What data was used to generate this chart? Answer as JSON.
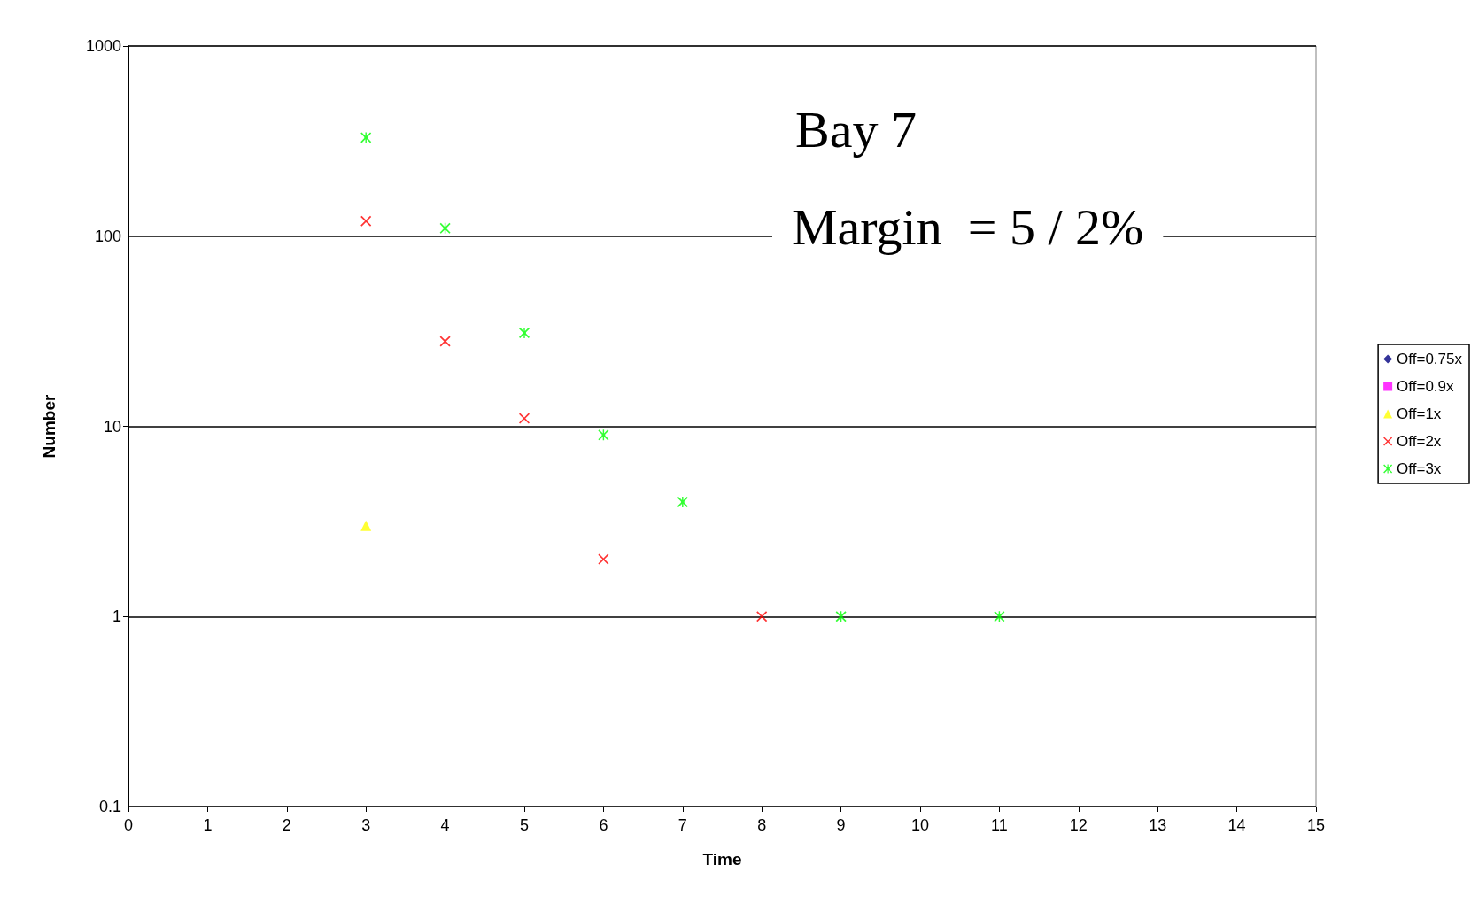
{
  "chart_data": {
    "type": "scatter",
    "title": "Bay 7",
    "annotations": [
      "Margin  = 5 / 2%"
    ],
    "xlabel": "Time",
    "ylabel": "Number",
    "log": "y",
    "xlim": [
      0,
      15
    ],
    "xticks": [
      0,
      1,
      2,
      3,
      4,
      5,
      6,
      7,
      8,
      9,
      10,
      11,
      12,
      13,
      14,
      15
    ],
    "ylim": [
      0.1,
      1000
    ],
    "yticks": [
      0.1,
      1,
      10,
      100,
      1000
    ],
    "grid": "y",
    "legend": "right",
    "series": [
      {
        "name": "Off=0.75x",
        "color": "#000080",
        "marker": "diamond"
      },
      {
        "name": "Off=0.9x",
        "color": "#ff00ff",
        "marker": "square"
      },
      {
        "name": "Off=1x",
        "color": "#ffff00",
        "marker": "triangle",
        "x": [
          3
        ],
        "values": [
          3
        ]
      },
      {
        "name": "Off=2x",
        "color": "#ff0000",
        "marker": "cross",
        "x": [
          3,
          4,
          5,
          6,
          8
        ],
        "values": [
          120,
          28,
          11,
          2,
          1
        ]
      },
      {
        "name": "Off=3x",
        "color": "#00ff00",
        "marker": "star",
        "x": [
          3,
          4,
          5,
          6,
          7,
          9,
          11
        ],
        "values": [
          330,
          110,
          31,
          9,
          4,
          1,
          1
        ]
      }
    ]
  }
}
